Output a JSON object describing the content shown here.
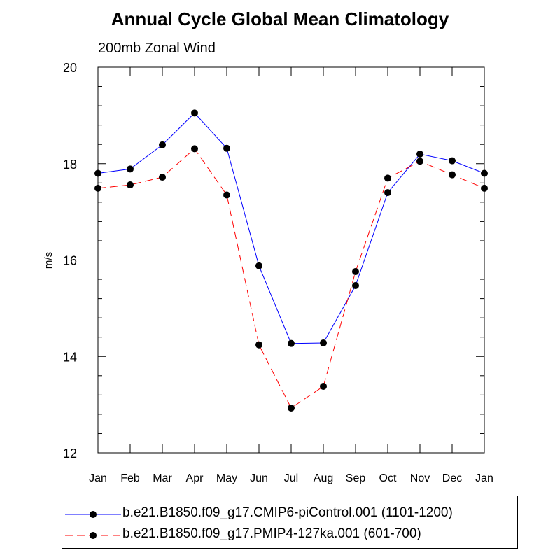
{
  "chart_data": {
    "type": "line",
    "title": "Annual Cycle Global Mean Climatology",
    "subtitle": "200mb Zonal Wind",
    "xlabel": "",
    "ylabel": "m/s",
    "ylim": [
      12,
      20
    ],
    "yticks": [
      "12",
      "14",
      "16",
      "18",
      "20"
    ],
    "categories": [
      "Jan",
      "Feb",
      "Mar",
      "Apr",
      "May",
      "Jun",
      "Jul",
      "Aug",
      "Sep",
      "Oct",
      "Nov",
      "Dec",
      "Jan"
    ],
    "series": [
      {
        "name": "b.e21.B1850.f09_g17.CMIP6-piControl.001 (1101-1200)",
        "color": "#0000ff",
        "dash": "solid",
        "values": [
          17.8,
          17.89,
          18.39,
          19.05,
          18.32,
          15.88,
          14.27,
          14.28,
          15.47,
          17.4,
          18.2,
          18.06,
          17.8
        ]
      },
      {
        "name": "b.e21.B1850.f09_g17.PMIP4-127ka.001 (601-700)",
        "color": "#ff0000",
        "dash": "dashed",
        "values": [
          17.49,
          17.56,
          17.72,
          18.31,
          17.35,
          14.24,
          12.93,
          13.38,
          15.76,
          17.7,
          18.05,
          17.77,
          17.49
        ]
      }
    ]
  }
}
